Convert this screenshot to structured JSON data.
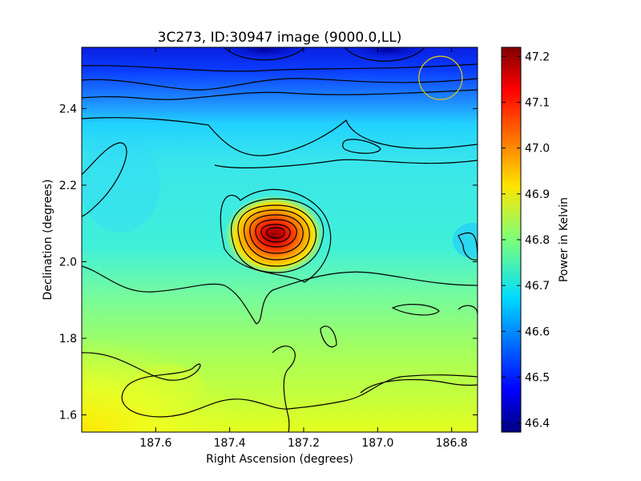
{
  "chart_data": {
    "type": "heatmap",
    "title": "3C273, ID:30947 image (9000.0,LL)",
    "xlabel": "Right Ascension (degrees)",
    "ylabel": "Declination (degrees)",
    "xlim": [
      187.8,
      186.73
    ],
    "ylim": [
      1.555,
      2.56
    ],
    "x_ticks": [
      187.6,
      187.4,
      187.2,
      187.0,
      186.8
    ],
    "x_tick_labels": [
      "187.6",
      "187.4",
      "187.2",
      "187.0",
      "186.8"
    ],
    "y_ticks": [
      1.6,
      1.8,
      2.0,
      2.2,
      2.4
    ],
    "y_tick_labels": [
      "1.6",
      "1.8",
      "2.0",
      "2.2",
      "2.4"
    ],
    "colormap": "jet",
    "colorbar": {
      "label": "Power in Kelvin",
      "range": [
        46.38,
        47.22
      ],
      "ticks": [
        46.4,
        46.5,
        46.6,
        46.7,
        46.8,
        46.9,
        47.0,
        47.1,
        47.2
      ],
      "tick_labels": [
        "46.4",
        "46.5",
        "46.6",
        "46.7",
        "46.8",
        "46.9",
        "47.0",
        "47.1",
        "47.2"
      ]
    },
    "source_peak": {
      "ra": 187.28,
      "dec": 2.07,
      "value": 47.22
    },
    "beam_marker": {
      "ra": 186.83,
      "dec": 2.48,
      "color": "#d6c21a"
    },
    "contours": true,
    "grid": false
  }
}
